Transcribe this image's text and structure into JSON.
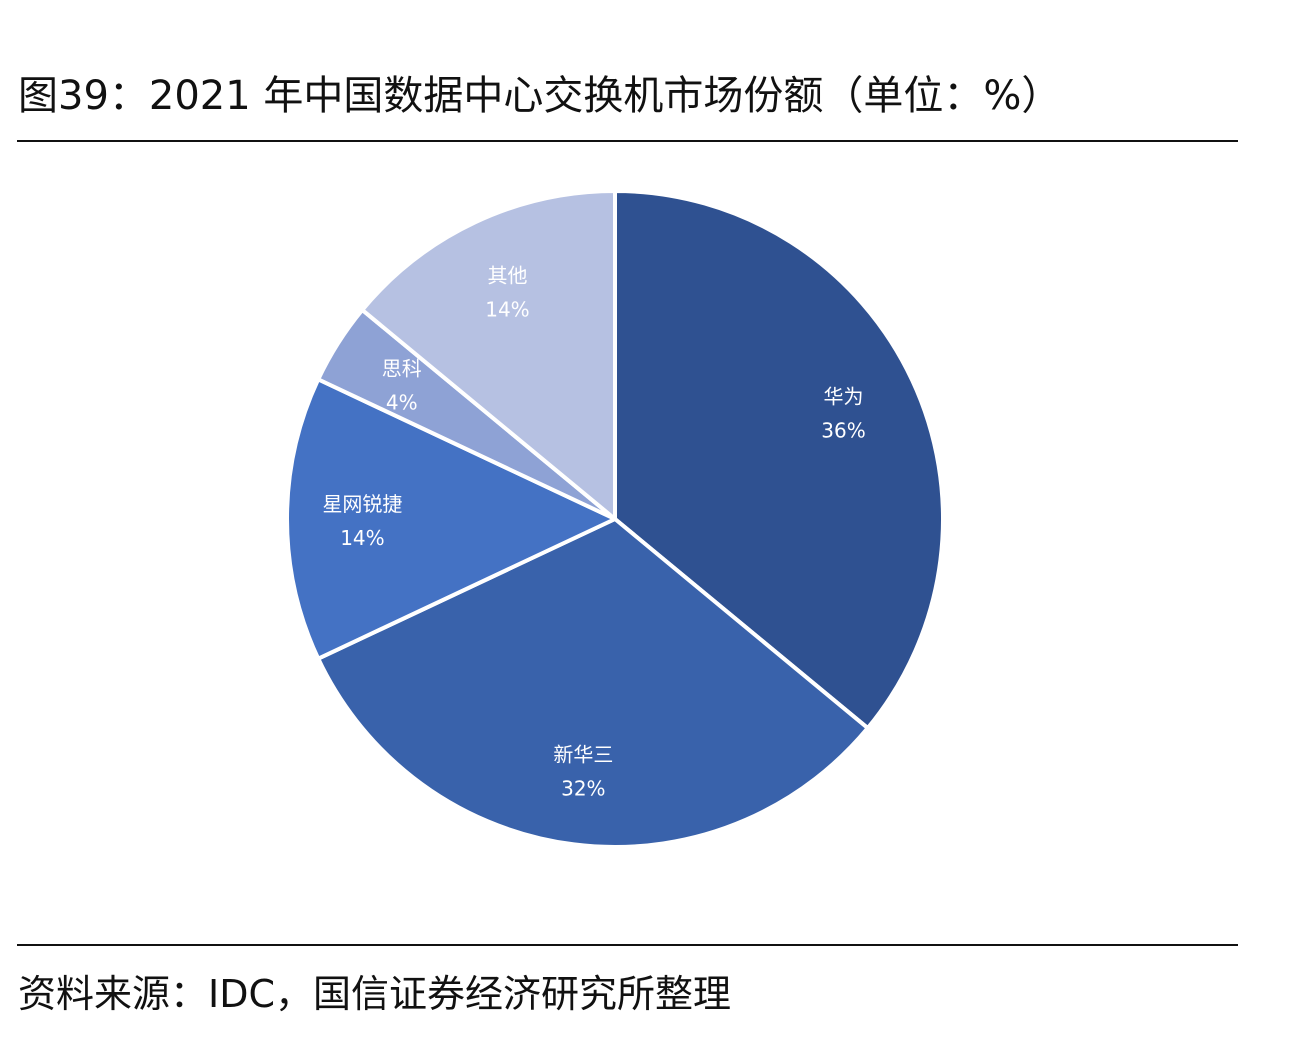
{
  "title": "图39：2021 年中国数据中心交换机市场份额（单位：%）",
  "source": "资料来源：IDC，国信证券经济研究所整理",
  "chart_data": {
    "type": "pie",
    "title": "图39：2021 年中国数据中心交换机市场份额（单位：%）",
    "unit": "%",
    "categories": [
      "华为",
      "新华三",
      "星网锐捷",
      "思科",
      "其他"
    ],
    "values": [
      36,
      32,
      14,
      4,
      14
    ],
    "value_labels": [
      "36%",
      "32%",
      "14%",
      "4%",
      "14%"
    ],
    "colors": [
      "#2f5191",
      "#3962ab",
      "#4472c4",
      "#8ea2d5",
      "#b6c1e2"
    ]
  }
}
